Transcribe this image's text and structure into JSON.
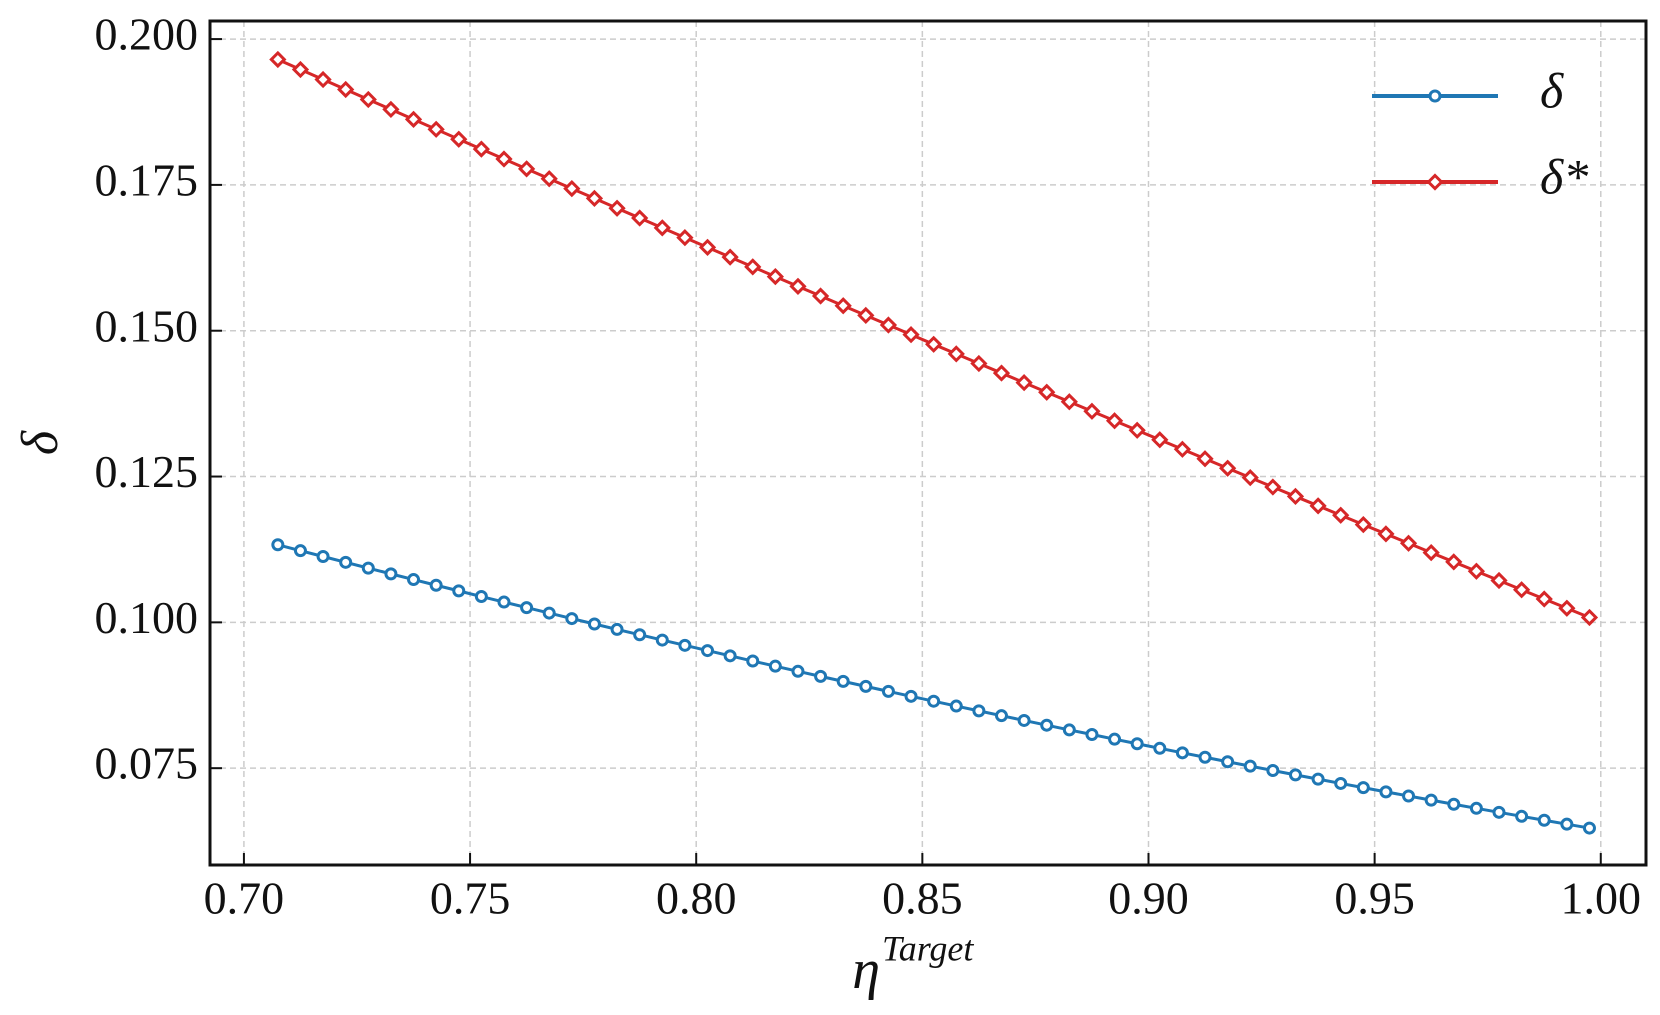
{
  "chart_data": {
    "type": "line",
    "xlabel": "η",
    "xlabel_superscript": "Target",
    "ylabel": "δ",
    "x": [
      0.7075,
      0.7125,
      0.7175,
      0.7225,
      0.7275,
      0.7325,
      0.7375,
      0.7425,
      0.7475,
      0.7525,
      0.7575,
      0.7625,
      0.7675,
      0.7725,
      0.7775,
      0.7825,
      0.7875,
      0.7925,
      0.7975,
      0.8025,
      0.8075,
      0.8125,
      0.8175,
      0.8225,
      0.8275,
      0.8325,
      0.8375,
      0.8425,
      0.8475,
      0.8525,
      0.8575,
      0.8625,
      0.8675,
      0.8725,
      0.8775,
      0.8825,
      0.8875,
      0.8925,
      0.8975,
      0.9025,
      0.9075,
      0.9125,
      0.9175,
      0.9225,
      0.9275,
      0.9325,
      0.9375,
      0.9425,
      0.9475,
      0.9525,
      0.9575,
      0.9625,
      0.9675,
      0.9725,
      0.9775,
      0.9825,
      0.9875,
      0.9925,
      0.9975
    ],
    "series": [
      {
        "name": "δ",
        "color": "#1f77b4",
        "marker": "circle",
        "values": [
          0.1133,
          0.11229,
          0.11129,
          0.11029,
          0.1093,
          0.10831,
          0.10734,
          0.10636,
          0.1054,
          0.10443,
          0.10348,
          0.10253,
          0.10159,
          0.10065,
          0.09972,
          0.09879,
          0.09788,
          0.09696,
          0.09606,
          0.09516,
          0.09426,
          0.09337,
          0.09249,
          0.09161,
          0.09074,
          0.08988,
          0.08902,
          0.08817,
          0.08732,
          0.08648,
          0.08565,
          0.08482,
          0.084,
          0.08318,
          0.08237,
          0.08156,
          0.08077,
          0.07997,
          0.07919,
          0.07841,
          0.07763,
          0.07687,
          0.0761,
          0.07535,
          0.0746,
          0.07385,
          0.07312,
          0.07238,
          0.07166,
          0.07094,
          0.07023,
          0.06952,
          0.06882,
          0.06812,
          0.06743,
          0.06675,
          0.06607,
          0.0654,
          0.06473
        ]
      },
      {
        "name": "δ*",
        "color": "#d62728",
        "marker": "diamond",
        "values": [
          0.1965,
          0.19478,
          0.19307,
          0.19136,
          0.18965,
          0.18794,
          0.18624,
          0.18453,
          0.18283,
          0.18114,
          0.17944,
          0.17775,
          0.17606,
          0.17437,
          0.17268,
          0.171,
          0.16932,
          0.16764,
          0.16596,
          0.16429,
          0.16262,
          0.16095,
          0.15928,
          0.15761,
          0.15595,
          0.15429,
          0.15263,
          0.15098,
          0.14933,
          0.14767,
          0.14603,
          0.14438,
          0.14274,
          0.1411,
          0.13946,
          0.13782,
          0.13619,
          0.13456,
          0.13293,
          0.1313,
          0.12967,
          0.12805,
          0.12643,
          0.12481,
          0.1232,
          0.12159,
          0.11998,
          0.11837,
          0.11676,
          0.11516,
          0.11356,
          0.11196,
          0.11036,
          0.10877,
          0.10718,
          0.10559,
          0.104,
          0.10242,
          0.10084
        ]
      }
    ],
    "xlim": [
      0.6925,
      1.01
    ],
    "ylim": [
      0.0584,
      0.2031
    ],
    "xticks": [
      {
        "value": 0.7,
        "label": "0.70"
      },
      {
        "value": 0.75,
        "label": "0.75"
      },
      {
        "value": 0.8,
        "label": "0.80"
      },
      {
        "value": 0.85,
        "label": "0.85"
      },
      {
        "value": 0.9,
        "label": "0.90"
      },
      {
        "value": 0.95,
        "label": "0.95"
      },
      {
        "value": 1.0,
        "label": "1.00"
      }
    ],
    "yticks": [
      0.075,
      {
        "value": 0.1,
        "label": "0.100"
      },
      0.125,
      {
        "value": 0.15,
        "label": "0.150"
      },
      0.175,
      {
        "value": 0.2,
        "label": "0.200"
      }
    ],
    "grid": true,
    "legend": "upper right"
  }
}
